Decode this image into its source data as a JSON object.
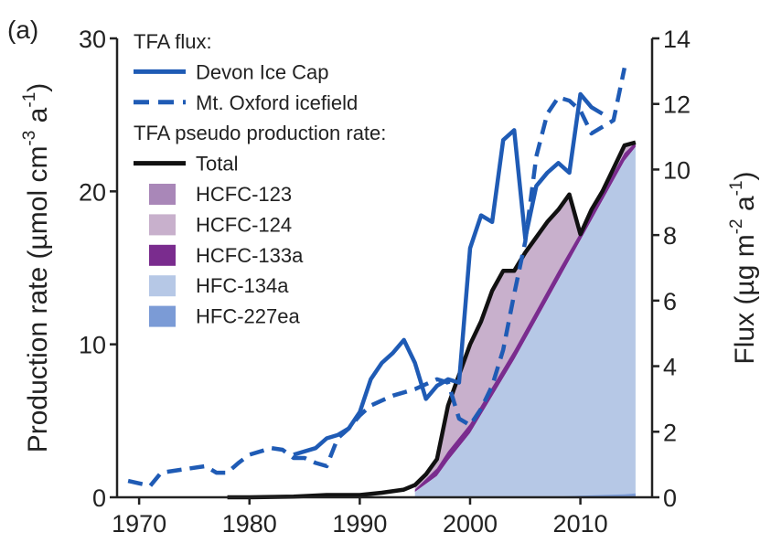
{
  "panel_label": "(a)",
  "chart_data": {
    "type": "area",
    "xlim": [
      1968,
      2016.5
    ],
    "x_ticks": [
      1970,
      1980,
      1990,
      2000,
      2010
    ],
    "y_left": {
      "label_parts": [
        "Production rate (µmol cm",
        "-3",
        " a",
        "-1",
        ")"
      ],
      "ylim": [
        0,
        30
      ],
      "ticks": [
        0,
        10,
        20,
        30
      ]
    },
    "y_right": {
      "label_parts": [
        "Flux (µg m",
        "-2",
        " a",
        "-1",
        ")"
      ],
      "ylim": [
        0,
        14
      ],
      "ticks": [
        0,
        2,
        4,
        6,
        8,
        10,
        12,
        14
      ]
    },
    "legend": {
      "flux_heading": "TFA flux:",
      "production_heading": "TFA pseudo production rate:"
    },
    "flux_series": [
      {
        "name": "Devon Ice Cap",
        "color": "#1f5bb5",
        "dash": "solid",
        "x": [
          1984,
          1986,
          1987,
          1988,
          1989,
          1990,
          1991,
          1992,
          1993,
          1994,
          1995,
          1996,
          1997,
          1998,
          1999,
          2000,
          2001,
          2002,
          2003,
          2004,
          2005,
          2006,
          2007,
          2008,
          2009,
          2010,
          2011,
          2012
        ],
        "values": [
          1.3,
          1.5,
          1.8,
          1.9,
          2.1,
          2.6,
          3.6,
          4.1,
          4.4,
          4.8,
          4.1,
          3.0,
          3.4,
          3.6,
          3.5,
          7.6,
          8.6,
          8.4,
          10.9,
          11.2,
          7.9,
          9.5,
          9.9,
          10.2,
          9.9,
          12.3,
          11.9,
          11.7
        ]
      },
      {
        "name": "Mt. Oxford icefield",
        "color": "#1f5bb5",
        "dash": "dashed",
        "x": [
          1969,
          1971,
          1972,
          1974,
          1976,
          1977,
          1978,
          1979,
          1980,
          1982,
          1983,
          1984,
          1985,
          1986,
          1987,
          1988,
          1989,
          1990,
          1991,
          1993,
          1995,
          1997,
          1998,
          1999,
          2000,
          2001,
          2002,
          2003,
          2004,
          2005,
          2006,
          2007,
          2008,
          2009,
          2010,
          2011,
          2012,
          2013,
          2014
        ],
        "values": [
          0.5,
          0.35,
          0.75,
          0.85,
          0.95,
          0.75,
          0.75,
          1.05,
          1.3,
          1.5,
          1.45,
          1.2,
          1.2,
          1.05,
          0.95,
          1.8,
          2.1,
          2.5,
          2.8,
          3.1,
          3.3,
          3.6,
          3.5,
          2.4,
          2.2,
          2.7,
          3.4,
          4.5,
          6.2,
          7.8,
          10.4,
          11.7,
          12.2,
          12.1,
          11.8,
          11.1,
          11.3,
          11.5,
          13.1
        ]
      }
    ],
    "production_series": [
      {
        "name": "Total",
        "color": "#111111",
        "type": "line",
        "x": [
          1978,
          1980,
          1984,
          1987,
          1990,
          1992,
          1994,
          1995,
          1996,
          1997,
          1998,
          1999,
          2000,
          2001,
          2002,
          2003,
          2004,
          2005,
          2006,
          2007,
          2008,
          2009,
          2010,
          2011,
          2012,
          2013,
          2014,
          2015
        ],
        "values": [
          0,
          0,
          0.05,
          0.15,
          0.15,
          0.3,
          0.5,
          0.8,
          1.5,
          2.5,
          6.0,
          8.0,
          10.0,
          11.5,
          13.5,
          14.8,
          14.8,
          16.0,
          17.0,
          18.0,
          18.8,
          19.8,
          17.2,
          18.8,
          20.0,
          21.5,
          23.0,
          23.2
        ]
      },
      {
        "name": "HCFC-123",
        "color": "#a987b8",
        "type": "area"
      },
      {
        "name": "HCFC-124",
        "color": "#c8b0cc",
        "type": "area",
        "x": [
          1995,
          1997,
          1998,
          1999,
          2000,
          2001,
          2002,
          2003,
          2004,
          2005,
          2006,
          2007,
          2008,
          2009,
          2010,
          2011,
          2012,
          2013,
          2014,
          2015
        ],
        "values": [
          0.8,
          2.5,
          6.0,
          8.0,
          10.0,
          11.5,
          13.5,
          14.8,
          14.8,
          16.0,
          17.0,
          18.0,
          18.8,
          19.8,
          17.2,
          18.8,
          20.0,
          21.5,
          23.0,
          23.2
        ]
      },
      {
        "name": "HCFC-133a",
        "color": "#7a2c8e",
        "type": "area",
        "x": [
          1995,
          1997,
          1998,
          2000,
          2002,
          2004,
          2006,
          2008,
          2010,
          2012,
          2014,
          2015
        ],
        "values": [
          0.5,
          1.9,
          3.0,
          4.8,
          7.2,
          9.6,
          12.2,
          14.8,
          17.3,
          19.9,
          22.5,
          23.2
        ]
      },
      {
        "name": "HFC-134a",
        "color": "#b6c8e6",
        "type": "area",
        "x": [
          1995,
          1997,
          1998,
          2000,
          2002,
          2004,
          2006,
          2008,
          2010,
          2012,
          2014,
          2015
        ],
        "values": [
          0.35,
          1.4,
          2.4,
          4.2,
          6.6,
          9.0,
          11.6,
          14.2,
          16.8,
          19.4,
          22.0,
          22.9
        ]
      },
      {
        "name": "HFC-227ea",
        "color": "#7b9bd6",
        "type": "area",
        "x": [
          2005,
          2008,
          2010,
          2012,
          2014,
          2015
        ],
        "values": [
          0,
          0.05,
          0.1,
          0.15,
          0.2,
          0.25
        ]
      }
    ]
  }
}
